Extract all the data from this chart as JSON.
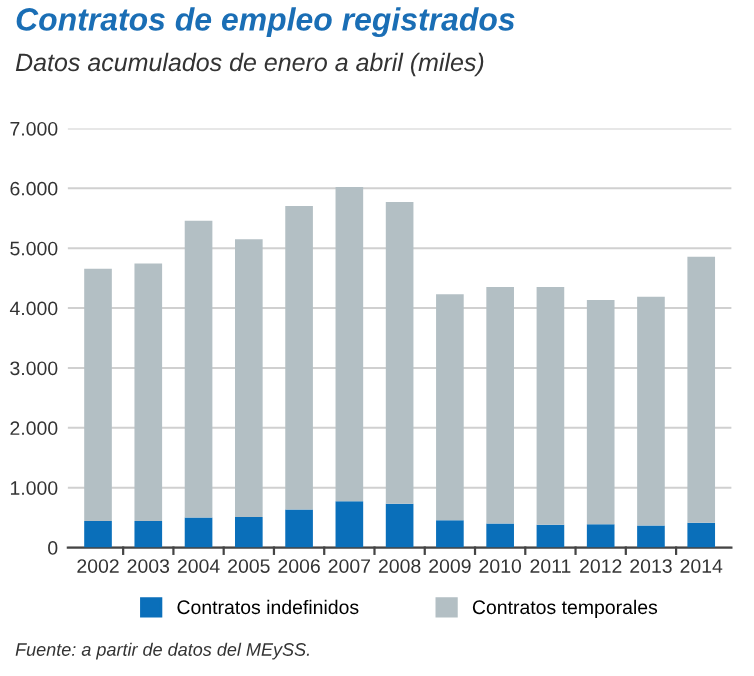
{
  "chart_data": {
    "type": "bar",
    "title": "Contratos de empleo registrados",
    "subtitle": "Datos acumulados de enero a abril (miles)",
    "categories": [
      "2002",
      "2003",
      "2004",
      "2005",
      "2006",
      "2007",
      "2008",
      "2009",
      "2010",
      "2011",
      "2012",
      "2013",
      "2014"
    ],
    "stacked": true,
    "series": [
      {
        "name": "Contratos indefinidos",
        "color": "#0a6fba",
        "values": [
          445,
          445,
          500,
          510,
          635,
          775,
          730,
          455,
          400,
          380,
          390,
          370,
          415
        ]
      },
      {
        "name": "Contratos temporales",
        "color": "#b3bfc4",
        "values": [
          4210,
          4300,
          4960,
          4640,
          5070,
          5245,
          5040,
          3775,
          3950,
          3970,
          3745,
          3820,
          4440
        ]
      }
    ],
    "ylim": [
      0,
      7000
    ],
    "yticks": [
      {
        "value": 0,
        "label": "0"
      },
      {
        "value": 1000,
        "label": "1.000"
      },
      {
        "value": 2000,
        "label": "2.000"
      },
      {
        "value": 3000,
        "label": "3.000"
      },
      {
        "value": 4000,
        "label": "4.000"
      },
      {
        "value": 5000,
        "label": "5.000"
      },
      {
        "value": 6000,
        "label": "6.000"
      },
      {
        "value": 7000,
        "label": "7.000"
      }
    ],
    "grid": "y",
    "legend": "bottom",
    "annotations": [
      "Fuente: a partir de datos del MEySS."
    ]
  }
}
